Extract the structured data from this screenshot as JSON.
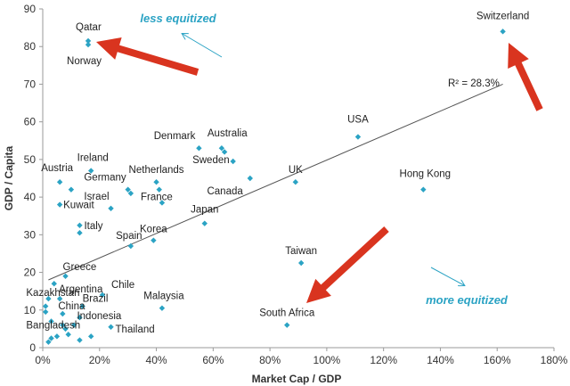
{
  "chart_data": {
    "type": "scatter",
    "xlabel": "Market Cap / GDP",
    "ylabel": "GDP / Capita",
    "xlim": [
      0,
      180
    ],
    "ylim": [
      0,
      90
    ],
    "x_unit": "%",
    "x_ticks": [
      "0%",
      "20%",
      "40%",
      "60%",
      "80%",
      "100%",
      "120%",
      "140%",
      "160%",
      "180%"
    ],
    "y_ticks": [
      "0",
      "10",
      "20",
      "30",
      "40",
      "50",
      "60",
      "70",
      "80",
      "90"
    ],
    "grid": false,
    "marker_color": "#2ba3c4",
    "arrow_color": "#d9341f",
    "trend_color": "#555555",
    "trendline": {
      "r2_label": "R² = 28.3%",
      "x": [
        2,
        162
      ],
      "y": [
        18,
        70
      ]
    },
    "annotations": {
      "top": "less equitized",
      "bottom": "more equitized"
    },
    "points": [
      {
        "label": "Qatar",
        "x": 16,
        "y": 81.5
      },
      {
        "label": "Norway",
        "x": 16,
        "y": 80.5
      },
      {
        "label": "Switzerland",
        "x": 162,
        "y": 84
      },
      {
        "label": "USA",
        "x": 111,
        "y": 56
      },
      {
        "label": "Denmark",
        "x": 55,
        "y": 53
      },
      {
        "label": "Australia",
        "x": 63,
        "y": 53
      },
      {
        "label": "",
        "x": 64,
        "y": 52
      },
      {
        "label": "Sweden",
        "x": 67,
        "y": 49.5
      },
      {
        "label": "Canada",
        "x": 73,
        "y": 45
      },
      {
        "label": "UK",
        "x": 89,
        "y": 44
      },
      {
        "label": "Hong Kong",
        "x": 134,
        "y": 42
      },
      {
        "label": "Ireland",
        "x": 17,
        "y": 47
      },
      {
        "label": "Austria",
        "x": 6,
        "y": 44
      },
      {
        "label": "",
        "x": 10,
        "y": 42
      },
      {
        "label": "Germany",
        "x": 30,
        "y": 42
      },
      {
        "label": "",
        "x": 31,
        "y": 41
      },
      {
        "label": "Netherlands",
        "x": 40,
        "y": 44
      },
      {
        "label": "",
        "x": 41,
        "y": 42
      },
      {
        "label": "France",
        "x": 42,
        "y": 38.5
      },
      {
        "label": "Israel",
        "x": 24,
        "y": 37
      },
      {
        "label": "Kuwait",
        "x": 6,
        "y": 38
      },
      {
        "label": "Italy",
        "x": 13,
        "y": 32.5
      },
      {
        "label": "",
        "x": 13,
        "y": 30.5
      },
      {
        "label": "Japan",
        "x": 57,
        "y": 33
      },
      {
        "label": "Korea",
        "x": 39,
        "y": 28.5
      },
      {
        "label": "Spain",
        "x": 31,
        "y": 27
      },
      {
        "label": "Taiwan",
        "x": 91,
        "y": 22.5
      },
      {
        "label": "Greece",
        "x": 8,
        "y": 19
      },
      {
        "label": "",
        "x": 4,
        "y": 17
      },
      {
        "label": "Argentina",
        "x": 6,
        "y": 13
      },
      {
        "label": "Chile",
        "x": 21,
        "y": 14
      },
      {
        "label": "Malaysia",
        "x": 42,
        "y": 10.5
      },
      {
        "label": "Kazakhstan",
        "x": 2,
        "y": 13
      },
      {
        "label": "Brazil",
        "x": 14,
        "y": 11
      },
      {
        "label": "China",
        "x": 7,
        "y": 9
      },
      {
        "label": "",
        "x": 1,
        "y": 11
      },
      {
        "label": "",
        "x": 1,
        "y": 9.5
      },
      {
        "label": "",
        "x": 3,
        "y": 7
      },
      {
        "label": "",
        "x": 7,
        "y": 6
      },
      {
        "label": "",
        "x": 8,
        "y": 5
      },
      {
        "label": "Indonesia",
        "x": 13,
        "y": 8
      },
      {
        "label": "",
        "x": 11,
        "y": 6
      },
      {
        "label": "South Africa",
        "x": 86,
        "y": 6
      },
      {
        "label": "Thailand",
        "x": 24,
        "y": 5.5
      },
      {
        "label": "Bangladesh",
        "x": 2,
        "y": 1.5
      },
      {
        "label": "",
        "x": 3,
        "y": 2.5
      },
      {
        "label": "",
        "x": 5,
        "y": 3
      },
      {
        "label": "",
        "x": 9,
        "y": 3.5
      },
      {
        "label": "",
        "x": 13,
        "y": 2
      },
      {
        "label": "",
        "x": 17,
        "y": 3
      }
    ]
  }
}
